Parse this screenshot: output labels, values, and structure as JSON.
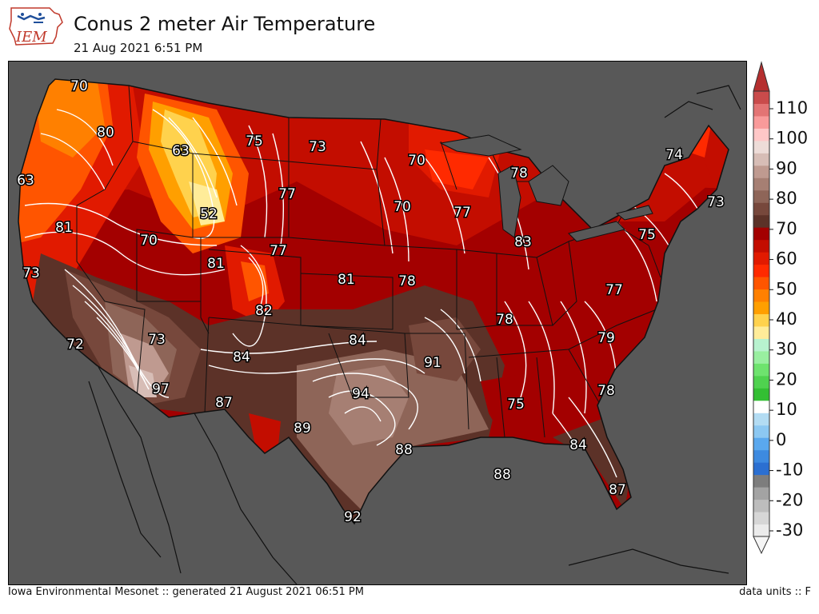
{
  "header": {
    "title": "Conus 2 meter Air Temperature",
    "subtitle": "21 Aug 2021 6:51 PM",
    "logo_text": "IEM"
  },
  "footer": {
    "left": "Iowa Environmental Mesonet :: generated 21 August 2021 06:51 PM",
    "right": "data units :: F"
  },
  "map": {
    "ocean_color": "#585858",
    "labels": [
      {
        "id": "70-wa",
        "text": "70"
      },
      {
        "id": "80-wa",
        "text": "80"
      },
      {
        "id": "63-or",
        "text": "63"
      },
      {
        "id": "81-or",
        "text": "81"
      },
      {
        "id": "73-ca-n",
        "text": "73"
      },
      {
        "id": "72-ca",
        "text": "72"
      },
      {
        "id": "63-mt",
        "text": "63"
      },
      {
        "id": "75-mt",
        "text": "75"
      },
      {
        "id": "52-wy",
        "text": "52"
      },
      {
        "id": "70-id",
        "text": "70"
      },
      {
        "id": "81-ut",
        "text": "81"
      },
      {
        "id": "73-az",
        "text": "73"
      },
      {
        "id": "97-az",
        "text": "97"
      },
      {
        "id": "82-co",
        "text": "82"
      },
      {
        "id": "77-sd",
        "text": "77"
      },
      {
        "id": "77-ne",
        "text": "77"
      },
      {
        "id": "73-nd",
        "text": "73"
      },
      {
        "id": "84-nm",
        "text": "84"
      },
      {
        "id": "87-nm",
        "text": "87"
      },
      {
        "id": "89-tx",
        "text": "89"
      },
      {
        "id": "94-tx",
        "text": "94"
      },
      {
        "id": "88-tx",
        "text": "88"
      },
      {
        "id": "92-tx",
        "text": "92"
      },
      {
        "id": "81-ks",
        "text": "81"
      },
      {
        "id": "78-ks",
        "text": "78"
      },
      {
        "id": "84-ok",
        "text": "84"
      },
      {
        "id": "91-ar",
        "text": "91"
      },
      {
        "id": "88-gulf",
        "text": "88"
      },
      {
        "id": "70-mn",
        "text": "70"
      },
      {
        "id": "70-ia",
        "text": "70"
      },
      {
        "id": "77-wi",
        "text": "77"
      },
      {
        "id": "78-mi",
        "text": "78"
      },
      {
        "id": "83-in",
        "text": "83"
      },
      {
        "id": "78-ky",
        "text": "78"
      },
      {
        "id": "75-al",
        "text": "75"
      },
      {
        "id": "84-ga",
        "text": "84"
      },
      {
        "id": "87-fl",
        "text": "87"
      },
      {
        "id": "78-sc",
        "text": "78"
      },
      {
        "id": "79-nc",
        "text": "79"
      },
      {
        "id": "77-va",
        "text": "77"
      },
      {
        "id": "75-pa",
        "text": "75"
      },
      {
        "id": "74-me",
        "text": "74"
      },
      {
        "id": "73-ma",
        "text": "73"
      }
    ]
  },
  "colorbar": {
    "ticks": [
      "110",
      "100",
      "90",
      "80",
      "70",
      "60",
      "50",
      "40",
      "30",
      "20",
      "10",
      "0",
      "-10",
      "-20",
      "-30"
    ],
    "colors": [
      "#ebebeb",
      "#d6d6d6",
      "#bdbdbd",
      "#a3a3a3",
      "#7d7d7d",
      "#2b6fd1",
      "#3d8ae0",
      "#5aa8ee",
      "#8cc8f2",
      "#b3dcf3",
      "#ffffff",
      "#33bf33",
      "#4fd24f",
      "#6ee36e",
      "#99efa0",
      "#b8f2cf",
      "#ffec99",
      "#ffd24d",
      "#ff9f00",
      "#ff8000",
      "#ff5500",
      "#ff2a00",
      "#e11a00",
      "#c30d00",
      "#a30000",
      "#5c3228",
      "#77483c",
      "#8e6558",
      "#a67f73",
      "#bf9a90",
      "#d7bdb6",
      "#eddcd8",
      "#ffc7c7",
      "#f99a9a",
      "#e37474",
      "#c94b4b"
    ]
  }
}
